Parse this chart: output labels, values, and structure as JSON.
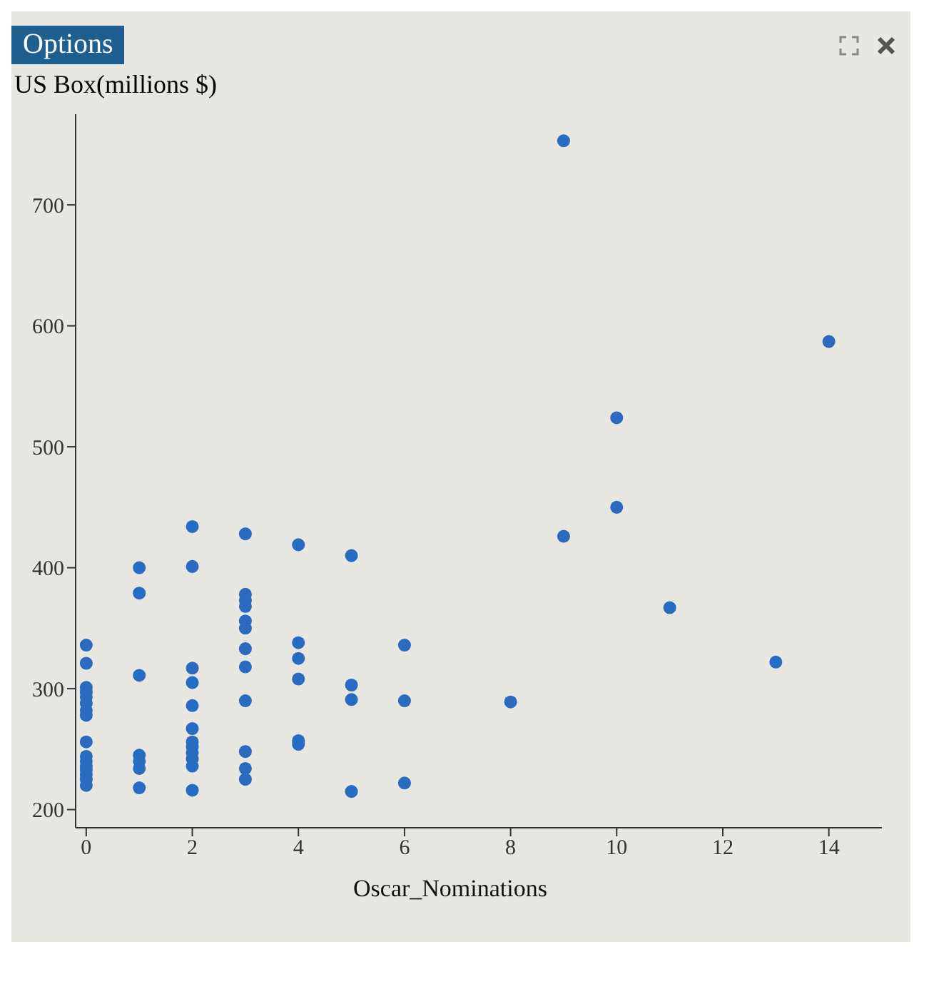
{
  "chart_data": {
    "type": "scatter",
    "ylabel": "US Box(millions $)",
    "xlabel": "Oscar_Nominations",
    "annotations": [
      "Options"
    ],
    "xlim": [
      -0.2,
      15
    ],
    "ylim": [
      185,
      775
    ],
    "xticks": [
      0,
      2,
      4,
      6,
      8,
      10,
      12,
      14
    ],
    "yticks": [
      200,
      300,
      400,
      500,
      600,
      700
    ],
    "marker": "circle",
    "series": [
      {
        "color": "#2a6bc2",
        "x": [
          0,
          0,
          0,
          0,
          0,
          0,
          0,
          0,
          0,
          0,
          0,
          0,
          0,
          0,
          0,
          0,
          1,
          1,
          1,
          1,
          1,
          1,
          1,
          2,
          2,
          2,
          2,
          2,
          2,
          2,
          2,
          2,
          2,
          2,
          2,
          3,
          3,
          3,
          3,
          3,
          3,
          3,
          3,
          3,
          3,
          3,
          3,
          4,
          4,
          4,
          4,
          4,
          4,
          5,
          5,
          5,
          5,
          6,
          6,
          6,
          8,
          9,
          9,
          10,
          10,
          11,
          13,
          14
        ],
        "values": [
          336,
          321,
          301,
          297,
          293,
          288,
          282,
          278,
          256,
          244,
          240,
          236,
          233,
          229,
          225,
          220,
          400,
          379,
          311,
          245,
          240,
          234,
          218,
          434,
          401,
          317,
          305,
          286,
          267,
          256,
          252,
          247,
          242,
          236,
          216,
          428,
          378,
          373,
          368,
          356,
          350,
          333,
          318,
          290,
          248,
          234,
          225,
          419,
          338,
          325,
          308,
          257,
          254,
          410,
          303,
          291,
          215,
          336,
          290,
          222,
          289,
          753,
          426,
          524,
          450,
          367,
          322,
          587
        ]
      }
    ]
  }
}
